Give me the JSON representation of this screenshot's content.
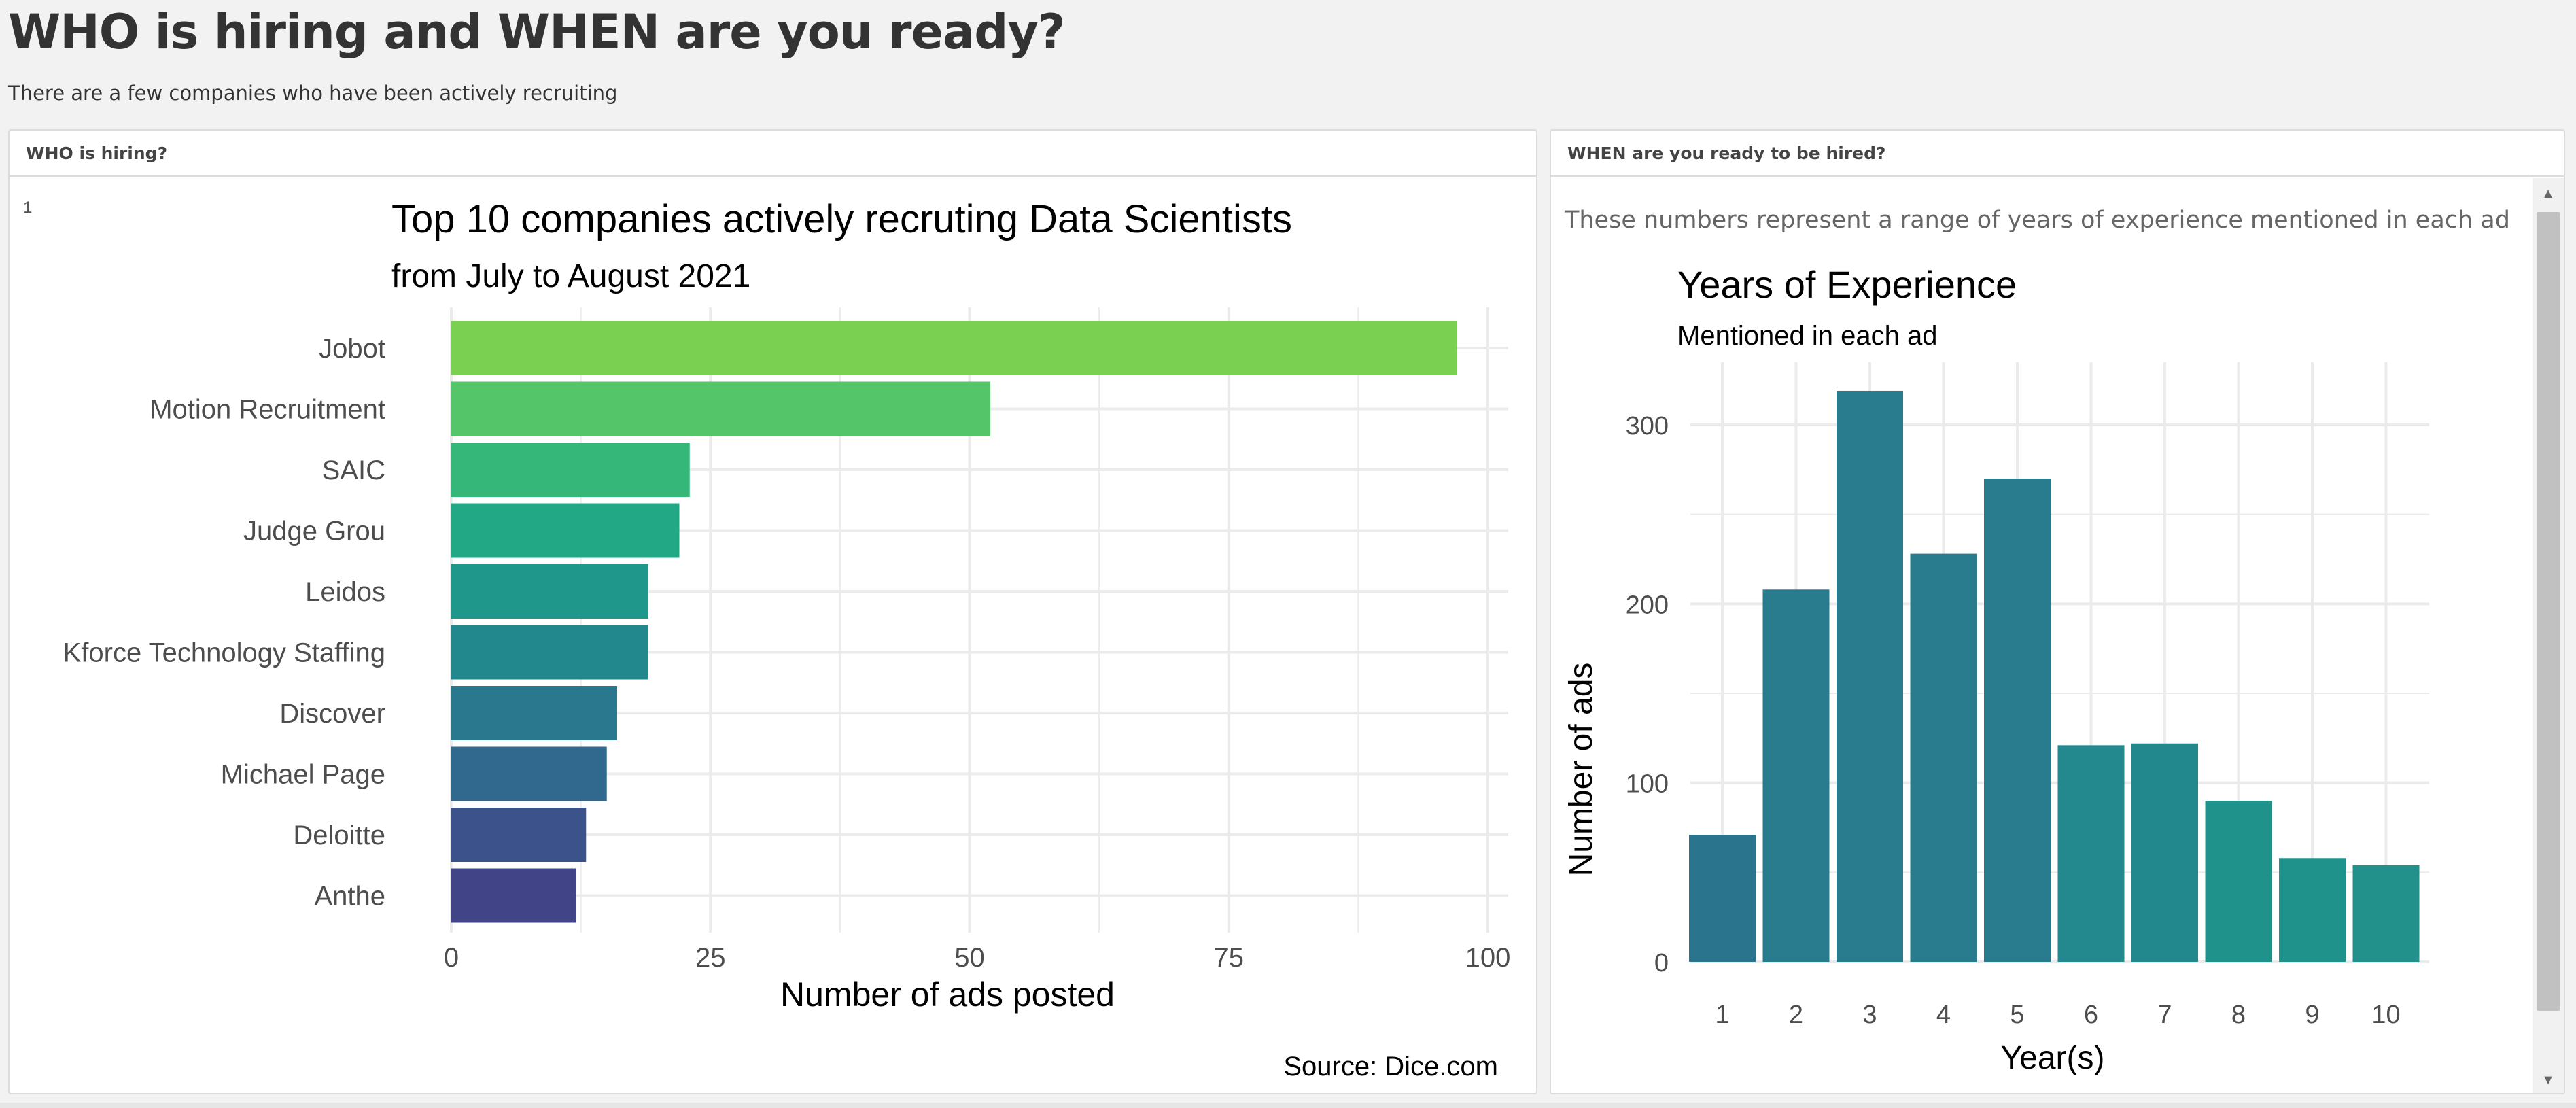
{
  "page": {
    "title": "WHO is hiring and WHEN are you ready?",
    "subtitle": "There are a few companies who have been actively recruiting"
  },
  "left_panel": {
    "header": "WHO is hiring?",
    "mark": "1"
  },
  "right_panel": {
    "header": "WHEN are you ready to be hired?",
    "description": "These numbers represent a range of years of experience mentioned in each ad"
  },
  "colors": {
    "left_bars": [
      "#7ad151",
      "#54c568",
      "#35b779",
      "#22a884",
      "#1f988b",
      "#23888e",
      "#2a788e",
      "#31688e",
      "#3b528b",
      "#414487"
    ],
    "right_bars": [
      "#2b748e",
      "#287c8e",
      "#287c8e",
      "#287c8e",
      "#287c8e",
      "#23898e",
      "#22888e",
      "#20928c",
      "#20928c",
      "#22918c"
    ],
    "grid": "#ebebeb"
  },
  "chart_data": [
    {
      "type": "bar",
      "orientation": "horizontal",
      "title": "Top 10 companies actively recruting Data Scientists",
      "subtitle": "from July to August 2021",
      "xlabel": "Number of ads posted",
      "ylabel": "",
      "caption": "Source: Dice.com",
      "categories": [
        "Jobot",
        "Motion Recruitment",
        "SAIC",
        "Judge Grou",
        "Leidos",
        "Kforce Technology Staffing",
        "Discover",
        "Michael Page",
        "Deloitte",
        "Anthe"
      ],
      "values": [
        97,
        52,
        23,
        22,
        19,
        19,
        16,
        15,
        13,
        12
      ],
      "xlim": [
        0,
        100
      ],
      "xticks": [
        0,
        25,
        50,
        75,
        100
      ],
      "grid": true,
      "legend": "none"
    },
    {
      "type": "bar",
      "orientation": "vertical",
      "title": "Years of Experience",
      "subtitle": "Mentioned in each ad",
      "xlabel": "Year(s)",
      "ylabel": "Number of ads",
      "categories": [
        "1",
        "2",
        "3",
        "4",
        "5",
        "6",
        "7",
        "8",
        "9",
        "10"
      ],
      "values": [
        71,
        208,
        319,
        228,
        270,
        121,
        122,
        90,
        58,
        54
      ],
      "ylim": [
        0,
        335
      ],
      "yticks": [
        0,
        100,
        200,
        300
      ],
      "grid": true,
      "legend": "none"
    }
  ]
}
